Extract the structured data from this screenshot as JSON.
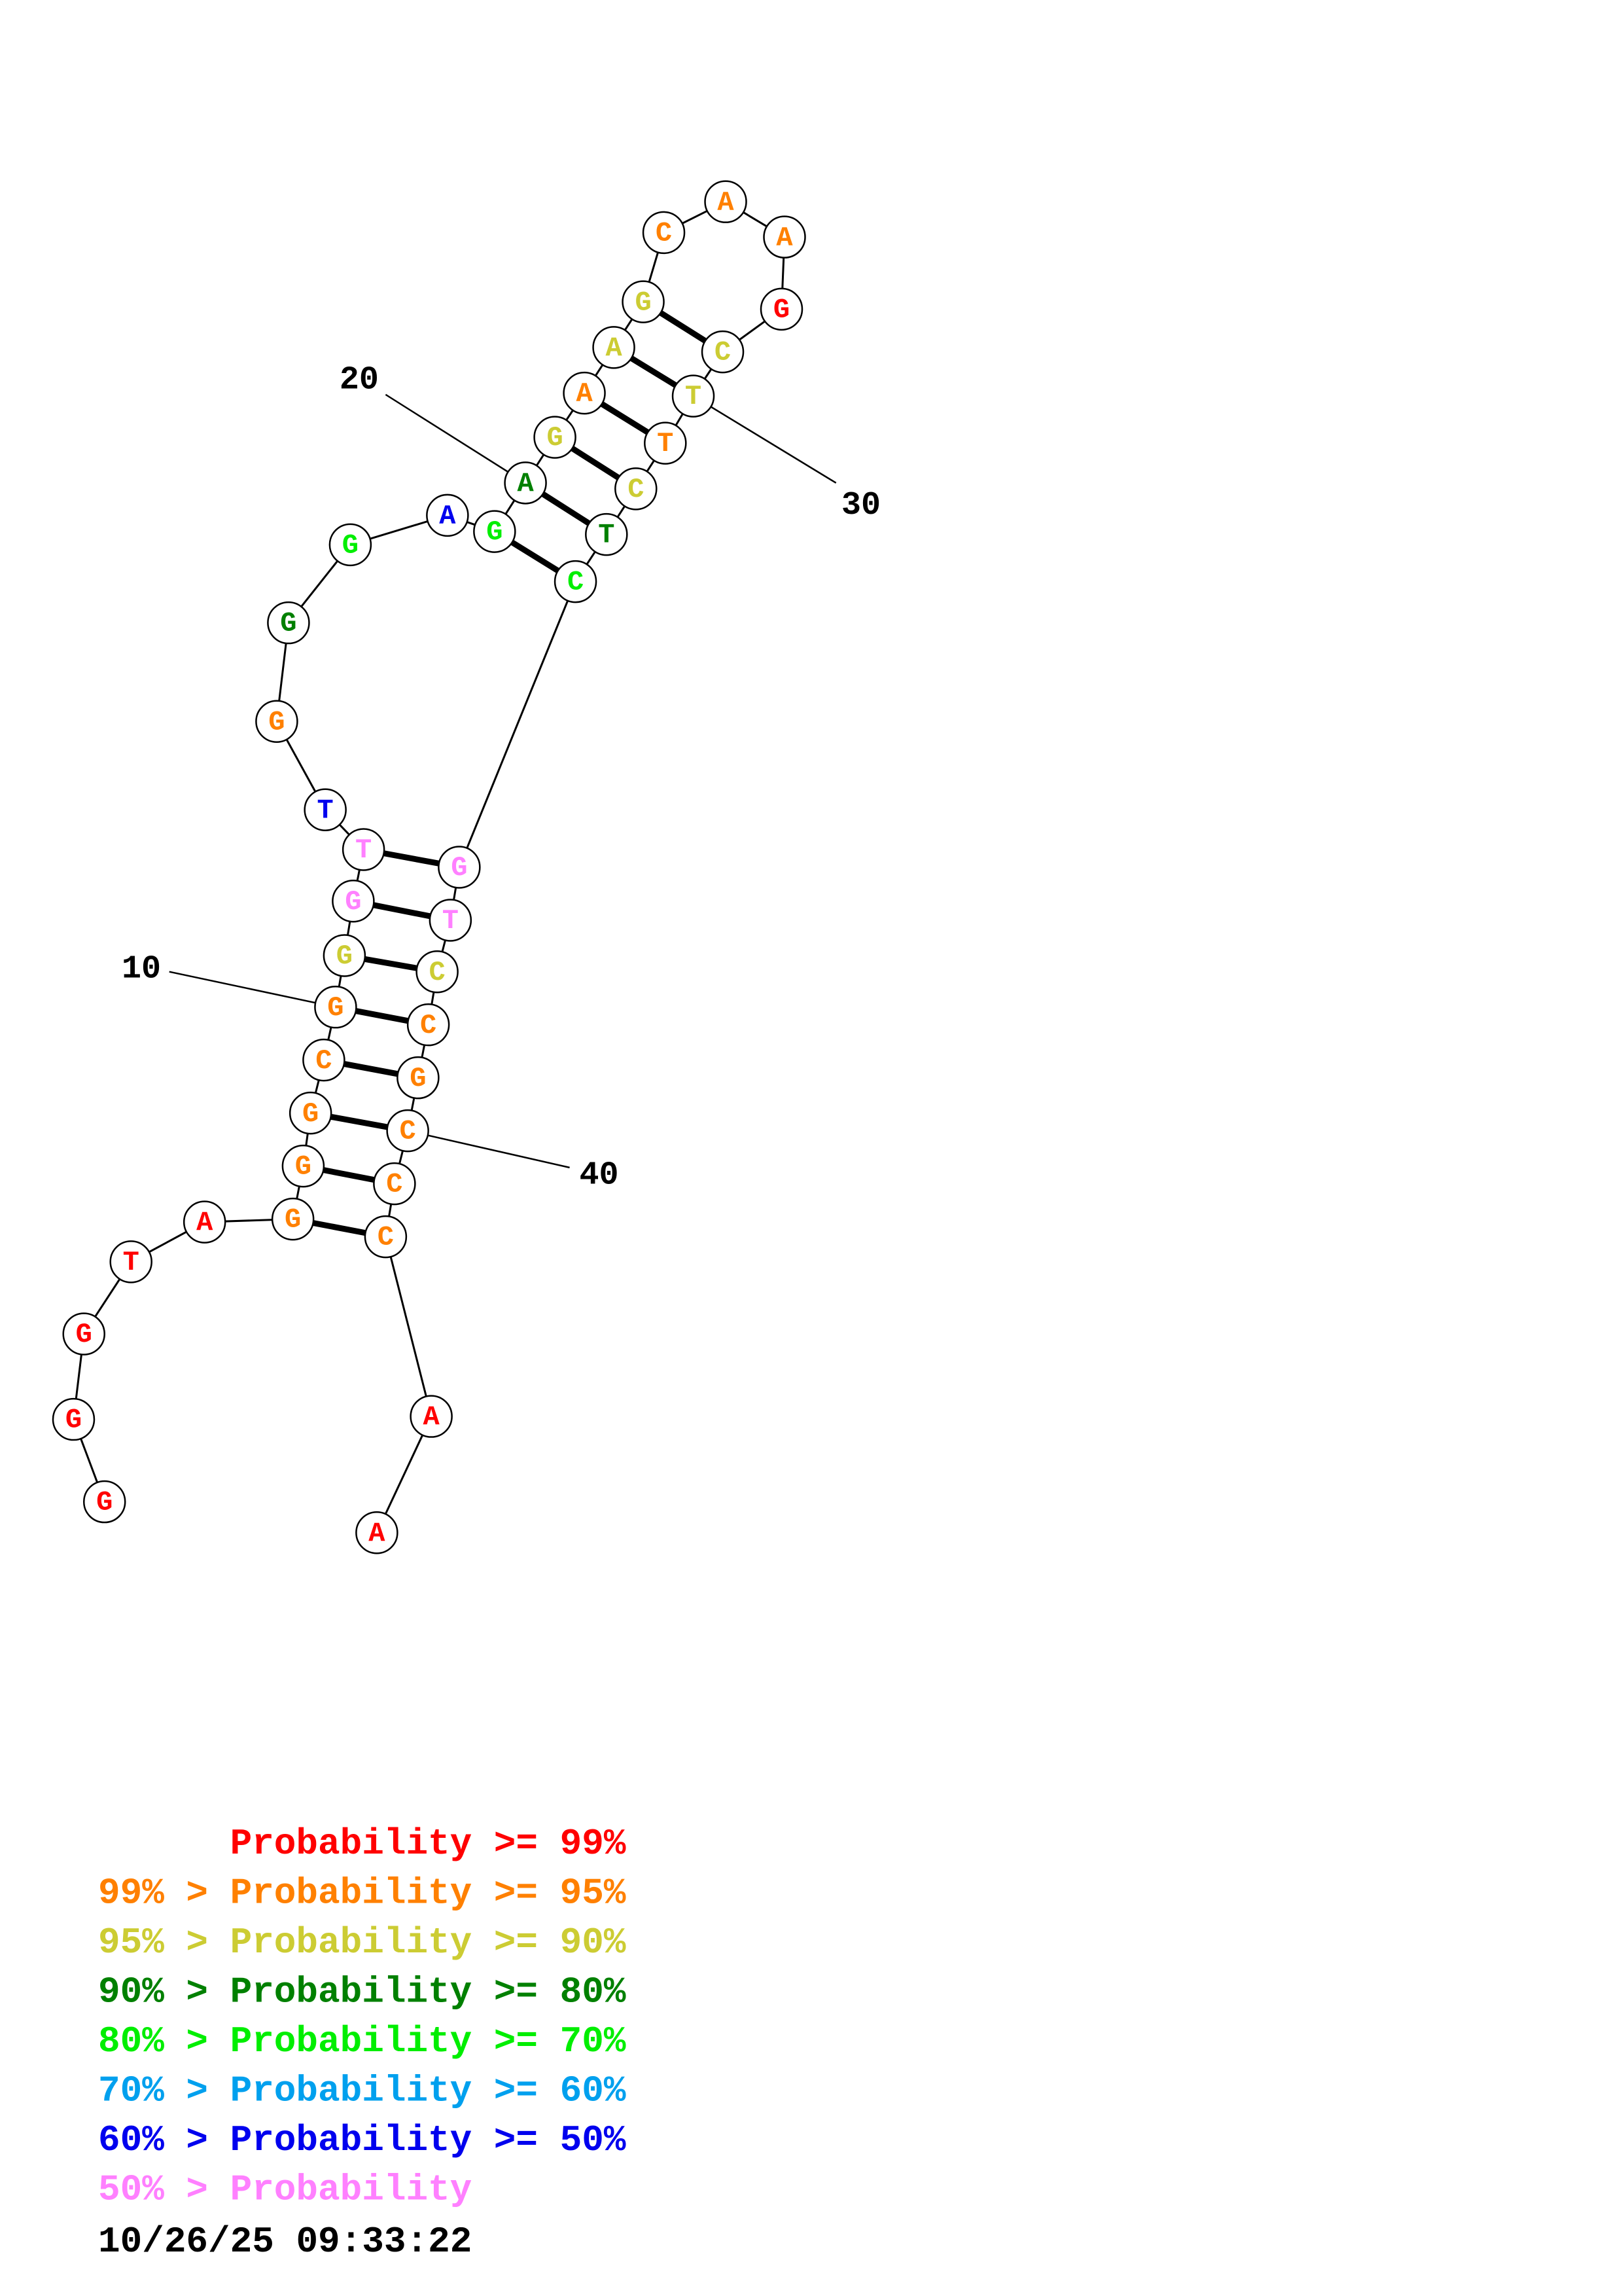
{
  "colors": {
    "red": "#ff0000",
    "orange": "#ff8000",
    "yellow": "#cccc33",
    "darkgreen": "#008000",
    "green": "#00ee00",
    "cyan": "#00a0ee",
    "blue": "#0000ee",
    "pink": "#ff80ff"
  },
  "nucleotides": [
    {
      "index": 1,
      "base": "G",
      "prob": "red"
    },
    {
      "index": 2,
      "base": "G",
      "prob": "red"
    },
    {
      "index": 3,
      "base": "G",
      "prob": "red"
    },
    {
      "index": 4,
      "base": "T",
      "prob": "red"
    },
    {
      "index": 5,
      "base": "A",
      "prob": "red"
    },
    {
      "index": 6,
      "base": "G",
      "prob": "orange"
    },
    {
      "index": 7,
      "base": "G",
      "prob": "orange"
    },
    {
      "index": 8,
      "base": "G",
      "prob": "orange"
    },
    {
      "index": 9,
      "base": "C",
      "prob": "orange"
    },
    {
      "index": 10,
      "base": "G",
      "prob": "orange"
    },
    {
      "index": 11,
      "base": "G",
      "prob": "yellow"
    },
    {
      "index": 12,
      "base": "G",
      "prob": "pink"
    },
    {
      "index": 13,
      "base": "T",
      "prob": "pink"
    },
    {
      "index": 14,
      "base": "T",
      "prob": "blue"
    },
    {
      "index": 15,
      "base": "G",
      "prob": "orange"
    },
    {
      "index": 16,
      "base": "G",
      "prob": "darkgreen"
    },
    {
      "index": 17,
      "base": "G",
      "prob": "green"
    },
    {
      "index": 18,
      "base": "A",
      "prob": "blue"
    },
    {
      "index": 19,
      "base": "G",
      "prob": "green"
    },
    {
      "index": 20,
      "base": "A",
      "prob": "darkgreen"
    },
    {
      "index": 21,
      "base": "G",
      "prob": "yellow"
    },
    {
      "index": 22,
      "base": "A",
      "prob": "orange"
    },
    {
      "index": 23,
      "base": "A",
      "prob": "yellow"
    },
    {
      "index": 24,
      "base": "G",
      "prob": "yellow"
    },
    {
      "index": 25,
      "base": "C",
      "prob": "orange"
    },
    {
      "index": 26,
      "base": "A",
      "prob": "orange"
    },
    {
      "index": 27,
      "base": "A",
      "prob": "orange"
    },
    {
      "index": 28,
      "base": "G",
      "prob": "red"
    },
    {
      "index": 29,
      "base": "C",
      "prob": "yellow"
    },
    {
      "index": 30,
      "base": "T",
      "prob": "yellow"
    },
    {
      "index": 31,
      "base": "T",
      "prob": "orange"
    },
    {
      "index": 32,
      "base": "C",
      "prob": "yellow"
    },
    {
      "index": 33,
      "base": "T",
      "prob": "darkgreen"
    },
    {
      "index": 34,
      "base": "C",
      "prob": "green"
    },
    {
      "index": 35,
      "base": "G",
      "prob": "pink"
    },
    {
      "index": 36,
      "base": "T",
      "prob": "pink"
    },
    {
      "index": 37,
      "base": "C",
      "prob": "yellow"
    },
    {
      "index": 38,
      "base": "C",
      "prob": "orange"
    },
    {
      "index": 39,
      "base": "G",
      "prob": "orange"
    },
    {
      "index": 40,
      "base": "C",
      "prob": "orange"
    },
    {
      "index": 41,
      "base": "C",
      "prob": "orange"
    },
    {
      "index": 42,
      "base": "C",
      "prob": "orange"
    },
    {
      "index": 43,
      "base": "A",
      "prob": "red"
    },
    {
      "index": 44,
      "base": "A",
      "prob": "red"
    }
  ],
  "pairs": [
    [
      6,
      42
    ],
    [
      7,
      41
    ],
    [
      8,
      40
    ],
    [
      9,
      39
    ],
    [
      10,
      38
    ],
    [
      11,
      37
    ],
    [
      12,
      36
    ],
    [
      13,
      35
    ],
    [
      19,
      34
    ],
    [
      20,
      33
    ],
    [
      21,
      32
    ],
    [
      22,
      31
    ],
    [
      23,
      30
    ],
    [
      24,
      29
    ]
  ],
  "position_labels": [
    {
      "index": 10,
      "text": "10"
    },
    {
      "index": 20,
      "text": "20"
    },
    {
      "index": 30,
      "text": "30"
    },
    {
      "index": 40,
      "text": "40"
    }
  ],
  "legend": [
    {
      "prefix": "",
      "label": "Probability",
      "suffix": ">= 99%",
      "color": "red"
    },
    {
      "prefix": "99% >",
      "label": "Probability",
      "suffix": ">= 95%",
      "color": "orange"
    },
    {
      "prefix": "95% >",
      "label": "Probability",
      "suffix": ">= 90%",
      "color": "yellow"
    },
    {
      "prefix": "90% >",
      "label": "Probability",
      "suffix": ">= 80%",
      "color": "darkgreen"
    },
    {
      "prefix": "80% >",
      "label": "Probability",
      "suffix": ">= 70%",
      "color": "green"
    },
    {
      "prefix": "70% >",
      "label": "Probability",
      "suffix": ">= 60%",
      "color": "cyan"
    },
    {
      "prefix": "60% >",
      "label": "Probability",
      "suffix": ">= 50%",
      "color": "blue"
    },
    {
      "prefix": "50% >",
      "label": "Probability",
      "suffix": "",
      "color": "pink"
    }
  ],
  "timestamp": "10/26/25 09:33:22"
}
